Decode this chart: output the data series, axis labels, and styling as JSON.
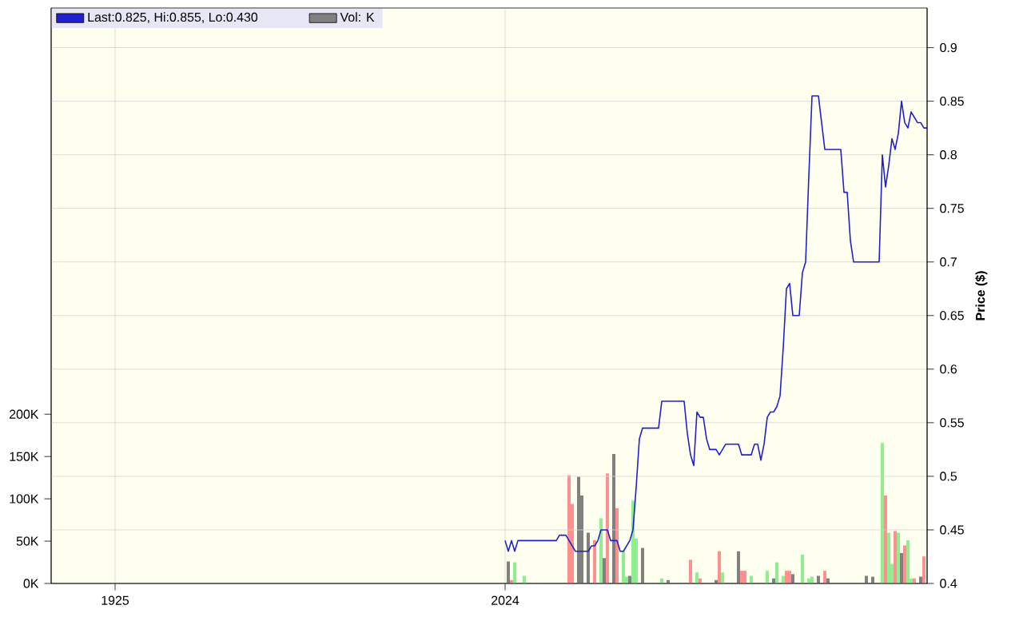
{
  "chart_data": {
    "type": "line",
    "y2label": "Price ($)",
    "categories": [
      null,
      null,
      null,
      null,
      null,
      null,
      null,
      null,
      null,
      null,
      null,
      null,
      null,
      null,
      null,
      null,
      null,
      null,
      null,
      null,
      "1925",
      null,
      null,
      null,
      null,
      null,
      null,
      null,
      null,
      null,
      null,
      null,
      null,
      null,
      null,
      null,
      null,
      null,
      null,
      null,
      null,
      null,
      null,
      null,
      null,
      null,
      null,
      null,
      null,
      null,
      null,
      null,
      null,
      null,
      null,
      null,
      null,
      null,
      null,
      null,
      null,
      null,
      null,
      null,
      null,
      null,
      null,
      null,
      null,
      null,
      null,
      null,
      null,
      null,
      null,
      null,
      null,
      null,
      null,
      null,
      null,
      null,
      null,
      null,
      null,
      null,
      null,
      null,
      null,
      null,
      null,
      null,
      null,
      null,
      null,
      null,
      null,
      null,
      null,
      null,
      null,
      null,
      null,
      null,
      null,
      null,
      null,
      null,
      null,
      null,
      null,
      null,
      null,
      null,
      null,
      null,
      null,
      null,
      null,
      null,
      null,
      null,
      null,
      null,
      null,
      null,
      null,
      null,
      null,
      null,
      null,
      null,
      null,
      null,
      null,
      null,
      null,
      null,
      null,
      null,
      null,
      null,
      "2024",
      null,
      null,
      null,
      null,
      null,
      null,
      null,
      null,
      null,
      null,
      null,
      null,
      null,
      null,
      null,
      null,
      null,
      null,
      null,
      null,
      null,
      null,
      null,
      null,
      null,
      null,
      null,
      null,
      null,
      null,
      null,
      null,
      null,
      null,
      null,
      null,
      null,
      null,
      null,
      null,
      null,
      null,
      null,
      null,
      null,
      null,
      null,
      null,
      null,
      null,
      null,
      null,
      null,
      null,
      null,
      null,
      null,
      null,
      null,
      null,
      null,
      null,
      null,
      null,
      null,
      null,
      null,
      null,
      null,
      null,
      null,
      null,
      null,
      null,
      null,
      null,
      null,
      null,
      null,
      null,
      null,
      null,
      null,
      null,
      null,
      null,
      null,
      null,
      null,
      null,
      null,
      null,
      null,
      null,
      null,
      null,
      null,
      null,
      null,
      null,
      null,
      null,
      null,
      null,
      null,
      null,
      null,
      null,
      null,
      null,
      null,
      null,
      null,
      null,
      null,
      null,
      null,
      null,
      null,
      null,
      null,
      null,
      null,
      null,
      null,
      null,
      null,
      null,
      null,
      null,
      null,
      null
    ],
    "ylim": [
      0,
      680000
    ],
    "yticks": [
      {
        "value": 0,
        "label": "0K"
      },
      {
        "value": 50000,
        "label": "50K"
      },
      {
        "value": 100000,
        "label": "100K"
      },
      {
        "value": 150000,
        "label": "150K"
      },
      {
        "value": 200000,
        "label": "200K"
      }
    ],
    "y2lim": [
      0.4,
      0.937
    ],
    "y2ticks": [
      0.4,
      0.45,
      0.5,
      0.55,
      0.6,
      0.65,
      0.7,
      0.75,
      0.8,
      0.85,
      0.9
    ],
    "grid": true,
    "legend": "top",
    "series": [
      {
        "axis": "y2",
        "name": "Last:0.825, Hi:0.855, Lo:0.430",
        "color": "#2020d0",
        "line_style": "solid",
        "marker": "none",
        "values": [
          null,
          null,
          null,
          null,
          null,
          null,
          null,
          null,
          null,
          null,
          null,
          null,
          null,
          null,
          null,
          null,
          null,
          null,
          null,
          null,
          null,
          null,
          null,
          null,
          null,
          null,
          null,
          null,
          null,
          null,
          null,
          null,
          null,
          null,
          null,
          null,
          null,
          null,
          null,
          null,
          null,
          null,
          null,
          null,
          null,
          null,
          null,
          null,
          null,
          null,
          null,
          null,
          null,
          null,
          null,
          null,
          null,
          null,
          null,
          null,
          null,
          null,
          null,
          null,
          null,
          null,
          null,
          null,
          null,
          null,
          null,
          null,
          null,
          null,
          null,
          null,
          null,
          null,
          null,
          null,
          null,
          null,
          null,
          null,
          null,
          null,
          null,
          null,
          null,
          null,
          null,
          null,
          null,
          null,
          null,
          null,
          null,
          null,
          null,
          null,
          null,
          null,
          null,
          null,
          null,
          null,
          null,
          null,
          null,
          null,
          null,
          null,
          null,
          null,
          null,
          null,
          null,
          null,
          null,
          null,
          null,
          null,
          null,
          null,
          null,
          null,
          null,
          null,
          null,
          null,
          null,
          null,
          null,
          null,
          null,
          null,
          null,
          null,
          null,
          null,
          null,
          null,
          0.44,
          0.43,
          0.44,
          0.43,
          0.44,
          0.44,
          0.44,
          0.44,
          0.44,
          0.44,
          0.44,
          0.44,
          0.44,
          0.44,
          0.44,
          0.44,
          0.44,
          0.445,
          0.445,
          0.445,
          0.44,
          0.435,
          0.43,
          0.43,
          0.43,
          0.43,
          0.43,
          0.435,
          0.435,
          0.44,
          0.45,
          0.45,
          0.45,
          0.44,
          0.44,
          0.44,
          0.43,
          0.43,
          0.435,
          0.44,
          0.45,
          0.49,
          0.535,
          0.545,
          0.545,
          0.545,
          0.545,
          0.545,
          0.545,
          0.57,
          0.57,
          0.57,
          0.57,
          0.57,
          0.57,
          0.57,
          0.57,
          0.54,
          0.52,
          0.51,
          0.56,
          0.555,
          0.555,
          0.535,
          0.525,
          0.525,
          0.525,
          0.52,
          0.525,
          0.53,
          0.53,
          0.53,
          0.53,
          0.53,
          0.52,
          0.52,
          0.52,
          0.52,
          0.53,
          0.53,
          0.515,
          0.53,
          0.555,
          0.56,
          0.56,
          0.565,
          0.575,
          0.62,
          0.675,
          0.68,
          0.65,
          0.65,
          0.65,
          0.69,
          0.7,
          0.78,
          0.855,
          0.855,
          0.855,
          0.83,
          0.805,
          0.805,
          0.805,
          0.805,
          0.805,
          0.805,
          0.765,
          0.765,
          0.72,
          0.7,
          0.7,
          0.7,
          0.7,
          0.7,
          0.7,
          0.7,
          0.7,
          0.7,
          0.8,
          0.77,
          0.79,
          0.815,
          0.805,
          0.82,
          0.85,
          0.83,
          0.825,
          0.84,
          0.835,
          0.83,
          0.83,
          0.825,
          0.825
        ]
      },
      {
        "type": "bar",
        "name": "Vol: K",
        "color": "#808080",
        "values": [
          null,
          null,
          null,
          null,
          null,
          null,
          null,
          null,
          null,
          null,
          null,
          null,
          null,
          null,
          null,
          null,
          null,
          null,
          null,
          null,
          null,
          null,
          null,
          null,
          null,
          null,
          null,
          null,
          null,
          null,
          null,
          null,
          null,
          null,
          null,
          null,
          null,
          null,
          null,
          null,
          null,
          null,
          null,
          null,
          null,
          null,
          null,
          null,
          null,
          null,
          null,
          null,
          null,
          null,
          null,
          null,
          null,
          null,
          null,
          null,
          null,
          null,
          null,
          null,
          null,
          null,
          null,
          null,
          null,
          null,
          null,
          null,
          null,
          null,
          null,
          null,
          null,
          null,
          null,
          null,
          null,
          null,
          null,
          null,
          null,
          null,
          null,
          null,
          null,
          null,
          null,
          null,
          null,
          null,
          null,
          null,
          null,
          null,
          null,
          null,
          null,
          null,
          null,
          null,
          null,
          null,
          null,
          null,
          null,
          null,
          null,
          null,
          null,
          null,
          null,
          null,
          null,
          null,
          null,
          null,
          null,
          null,
          null,
          null,
          null,
          null,
          null,
          null,
          null,
          null,
          null,
          null,
          null,
          null,
          null,
          null,
          null,
          null,
          null,
          null,
          null,
          null,
          null,
          26000,
          4000,
          25000,
          null,
          null,
          9000,
          null,
          null,
          null,
          null,
          null,
          null,
          null,
          null,
          null,
          null,
          null,
          null,
          null,
          128000,
          94000,
          null,
          126000,
          104000,
          null,
          60000,
          null,
          51000,
          null,
          77000,
          30000,
          130000,
          null,
          153000,
          89000,
          null,
          38000,
          8000,
          9000,
          98000,
          53000,
          null,
          42000,
          null,
          null,
          null,
          null,
          null,
          6000,
          null,
          4000,
          null,
          null,
          null,
          null,
          null,
          null,
          28000,
          null,
          13000,
          6000,
          null,
          null,
          null,
          null,
          4000,
          38000,
          13000,
          null,
          null,
          null,
          null,
          38000,
          15000,
          15000,
          null,
          9000,
          null,
          null,
          null,
          null,
          15000,
          null,
          6000,
          25000,
          null,
          9000,
          15000,
          15000,
          11000,
          null,
          null,
          34000,
          null,
          6000,
          8000,
          null,
          9000,
          null,
          15000,
          6000,
          null,
          null,
          null,
          null,
          null,
          null,
          null,
          null,
          null,
          null,
          null,
          9000,
          null,
          8000,
          null,
          null,
          166000,
          104000,
          60000,
          23000,
          62000,
          60000,
          36000,
          45000,
          51000,
          6000,
          6000,
          null,
          8000,
          32000,
          null
        ],
        "colors": [
          null,
          null,
          null,
          null,
          null,
          null,
          null,
          null,
          null,
          null,
          null,
          null,
          null,
          null,
          null,
          null,
          null,
          null,
          null,
          null,
          null,
          null,
          null,
          null,
          null,
          null,
          null,
          null,
          null,
          null,
          null,
          null,
          null,
          null,
          null,
          null,
          null,
          null,
          null,
          null,
          null,
          null,
          null,
          null,
          null,
          null,
          null,
          null,
          null,
          null,
          null,
          null,
          null,
          null,
          null,
          null,
          null,
          null,
          null,
          null,
          null,
          null,
          null,
          null,
          null,
          null,
          null,
          null,
          null,
          null,
          null,
          null,
          null,
          null,
          null,
          null,
          null,
          null,
          null,
          null,
          null,
          null,
          null,
          null,
          null,
          null,
          null,
          null,
          null,
          null,
          null,
          null,
          null,
          null,
          null,
          null,
          null,
          null,
          null,
          null,
          null,
          null,
          null,
          null,
          null,
          null,
          null,
          null,
          null,
          null,
          null,
          null,
          null,
          null,
          null,
          null,
          null,
          null,
          null,
          null,
          null,
          null,
          null,
          null,
          null,
          null,
          null,
          null,
          null,
          null,
          null,
          null,
          null,
          null,
          null,
          null,
          null,
          null,
          null,
          null,
          null,
          null,
          null,
          "#808080",
          "#ff9090",
          "#90ee90",
          null,
          null,
          "#90ee90",
          null,
          null,
          null,
          null,
          null,
          null,
          null,
          null,
          null,
          null,
          null,
          null,
          null,
          "#ff9090",
          "#ff9090",
          null,
          "#808080",
          "#808080",
          null,
          "#808080",
          null,
          "#ff9090",
          null,
          "#90ee90",
          "#808080",
          "#ff9090",
          null,
          "#808080",
          "#ff9090",
          null,
          "#90ee90",
          "#90ee90",
          "#808080",
          "#90ee90",
          "#90ee90",
          null,
          "#808080",
          null,
          null,
          null,
          null,
          null,
          "#90ee90",
          null,
          "#808080",
          null,
          null,
          null,
          null,
          null,
          null,
          "#ff9090",
          null,
          "#90ee90",
          "#ff9090",
          null,
          null,
          null,
          null,
          "#808080",
          "#ff9090",
          "#90ee90",
          null,
          null,
          null,
          null,
          "#808080",
          "#ff9090",
          "#ff9090",
          null,
          "#90ee90",
          null,
          null,
          null,
          null,
          "#90ee90",
          null,
          "#808080",
          "#90ee90",
          null,
          "#90ee90",
          "#ff9090",
          "#ff9090",
          "#808080",
          null,
          null,
          "#90ee90",
          null,
          "#90ee90",
          "#90ee90",
          null,
          "#808080",
          null,
          "#ff9090",
          "#808080",
          null,
          null,
          null,
          null,
          null,
          null,
          null,
          null,
          null,
          null,
          null,
          "#808080",
          null,
          "#808080",
          null,
          null,
          "#90ee90",
          "#ff9090",
          "#90ee90",
          "#90ee90",
          "#ff9090",
          "#90ee90",
          "#808080",
          "#ff9090",
          "#90ee90",
          "#90ee90",
          "#ff9090",
          null,
          "#808080",
          "#ff9090",
          null
        ]
      }
    ]
  }
}
